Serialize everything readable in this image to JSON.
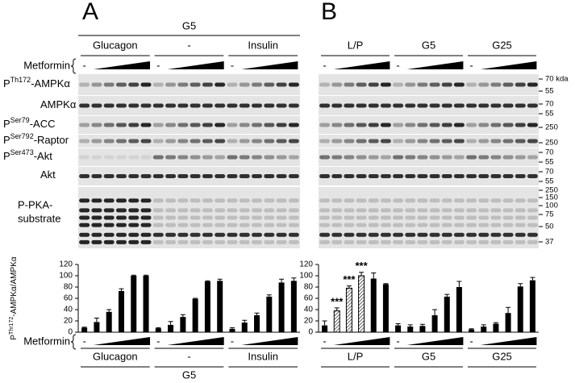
{
  "panel_labels": [
    "A",
    "B"
  ],
  "blot_headers": [
    {
      "title": "G5",
      "groups": [
        "Glucagon",
        "-",
        "Insulin"
      ]
    },
    {
      "groups": [
        "L/P",
        "G5",
        "G25"
      ]
    }
  ],
  "metformin_label": "Metformin",
  "metformin_minus": "-",
  "row_labels": [
    {
      "parts": [
        "P",
        "Th172",
        "-AMPKα"
      ]
    },
    {
      "parts": [
        "AMPKα"
      ]
    },
    {
      "parts": [
        "P",
        "Ser79",
        "-ACC"
      ]
    },
    {
      "parts": [
        "P",
        "Ser792",
        "-Raptor"
      ]
    },
    {
      "parts": [
        "P",
        "Ser473",
        "-Akt"
      ]
    },
    {
      "parts": [
        "Akt"
      ]
    },
    {
      "lines": [
        "P-PKA-",
        "substrate"
      ]
    }
  ],
  "mw_markers": [
    "70 kda",
    "55",
    "70",
    "55",
    "250",
    "250",
    "70",
    "55",
    "70",
    "55",
    "250",
    "150",
    "100",
    "75",
    "50",
    "37"
  ],
  "chart_data": [
    {
      "type": "bar",
      "y_label": [
        "P",
        "Thr172",
        "-AMPKα/AMPKα"
      ],
      "x_label": "Metformin",
      "x_minus": "-",
      "group_title": "G5",
      "ylim": [
        0,
        120
      ],
      "yticks": [
        0,
        20,
        40,
        60,
        80,
        100,
        120
      ],
      "series": [
        {
          "name": "Glucagon",
          "color": "#000000",
          "values": [
            8,
            18,
            36,
            73,
            100,
            100
          ],
          "errors": [
            1,
            7,
            4,
            4,
            1,
            1
          ]
        },
        {
          "name": "-",
          "color": "#000000",
          "values": [
            7,
            13,
            27,
            59,
            90,
            91
          ],
          "errors": [
            1,
            6,
            4,
            1,
            1,
            3
          ]
        },
        {
          "name": "Insulin",
          "color": "#000000",
          "values": [
            6,
            17,
            30,
            63,
            88,
            91
          ],
          "errors": [
            2,
            4,
            4,
            3,
            6,
            5
          ]
        }
      ]
    },
    {
      "type": "bar",
      "x_label": "Metformin",
      "x_minus": "-",
      "ylim": [
        0,
        120
      ],
      "yticks": [
        0,
        20,
        40,
        60,
        80,
        100,
        120
      ],
      "series": [
        {
          "name": "L/P",
          "color": "#000000",
          "values": [
            12,
            38,
            78,
            100,
            95,
            85
          ],
          "errors": [
            8,
            5,
            4,
            6,
            10,
            1
          ],
          "hatched": [
            false,
            true,
            true,
            true,
            false,
            false
          ],
          "significance": [
            null,
            "***",
            "***",
            "***",
            null,
            null
          ]
        },
        {
          "name": "G5",
          "color": "#000000",
          "values": [
            12,
            10,
            11,
            30,
            63,
            80
          ],
          "errors": [
            3,
            3,
            3,
            10,
            4,
            10
          ]
        },
        {
          "name": "G25",
          "color": "#000000",
          "values": [
            5,
            10,
            15,
            34,
            81,
            92
          ],
          "errors": [
            1,
            3,
            2,
            10,
            5,
            5
          ]
        }
      ]
    }
  ]
}
